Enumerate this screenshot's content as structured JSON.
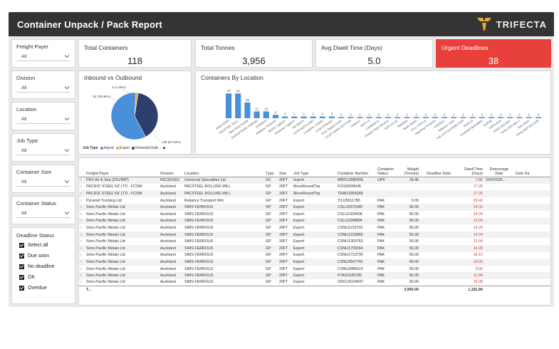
{
  "header": {
    "title": "Container Unpack / Pack Report",
    "logo_text": "TRIFECTA"
  },
  "slicers": [
    {
      "label": "Freight Payer",
      "value": "All"
    },
    {
      "label": "Division",
      "value": "All"
    },
    {
      "label": "Location",
      "value": "All"
    },
    {
      "label": "Job Type",
      "value": "All"
    },
    {
      "label": "Container Size",
      "value": "All"
    },
    {
      "label": "Container Status",
      "value": "All"
    }
  ],
  "deadline_status": {
    "title": "Deadline Status",
    "options": [
      "Select all",
      "Due soon",
      "No deadline",
      "OK",
      "Overdue"
    ]
  },
  "kpis": {
    "total_containers": {
      "label": "Total Containers",
      "value": "118"
    },
    "total_tonnes": {
      "label": "Total Tonnes",
      "value": "3,956"
    },
    "avg_dwell": {
      "label": "Avg Dwell Time (Days)",
      "value": "5.0"
    },
    "urgent": {
      "label": "Urgent Deadlines",
      "value": "38"
    }
  },
  "colors": {
    "import": "#4a90d9",
    "export": "#2e3e6e",
    "domestic": "#e8a838",
    "bar": "#4a90d9",
    "urgent": "#e8403b",
    "header": "#333334"
  },
  "chart_data": [
    {
      "type": "pie",
      "title": "Inbound vs Outbound",
      "legend_title": "Job Type",
      "legend": [
        "Import",
        "Export",
        "DomesticOutb..."
      ],
      "categories": [
        "Import",
        "Export",
        "DomesticOutbound"
      ],
      "values": [
        136,
        92,
        4
      ],
      "data_labels": [
        "136 (57.63%)",
        "92 (38.98%)",
        "4 (1.69%)"
      ]
    },
    {
      "type": "bar",
      "title": "Containers By Location",
      "categories": [
        "SIMS FERR",
        "PACSTEEL ROLL",
        "Blue Wing Honda",
        "Sanford Pacific Holdings",
        "CHEMCO",
        "Reliance Transport",
        "MOVE Logistics",
        "American Logistics",
        "NZ BRICK",
        "CCEP AUCKLAND",
        "Container Trustee",
        "Coral Company",
        "Enzo Supply Chain",
        "CCEP OASIS ROTTOM",
        "ChemCo",
        "UNITY 5",
        "ContainerCo",
        "Custom Pack Services",
        "REFLEX NZ",
        "Mainland",
        "Hawk Stores",
        "FULL CIRCLE",
        "Hyperstar Products",
        "KIWIRAIL",
        "Reliance Trans",
        "THE CAT DISTRIBUTION",
        "ROHLIG",
        "Universal Specialties",
        "SunPak",
        "VIRGLASS",
        "VIRGLASS BAY",
        "VIRGLASS BAY 2",
        "Vine Glass",
        "VIRGLASS NELSON"
      ],
      "values": [
        44,
        44,
        28,
        12,
        12,
        6,
        3,
        3,
        3,
        3,
        3,
        3,
        2,
        2,
        2,
        2,
        2,
        2,
        2,
        2,
        2,
        2,
        2,
        2,
        2,
        2,
        2,
        2,
        2,
        2,
        2,
        2,
        2,
        2
      ],
      "data_labels": [
        "44",
        "44",
        "28",
        "12",
        "12",
        "6",
        "3",
        "3",
        "3",
        "3",
        "3",
        "3",
        "2",
        "2",
        "2",
        "2",
        "2",
        "2",
        "2",
        "2",
        "2",
        "2",
        "2",
        "2",
        "2",
        "2",
        "2",
        "2",
        "2",
        "2",
        "2",
        "2",
        "2",
        "2"
      ]
    }
  ],
  "table": {
    "columns": [
      "Freight Payer",
      "Division",
      "Location",
      "Type",
      "Size",
      "Job Type",
      "Container Number",
      "Container Status",
      "Weight (Tonnes)",
      "Deadline Date",
      "Dwell Time (Days)",
      "Demurrage Date",
      "Dete Da"
    ],
    "rows": [
      [
        "DSV Air & Sea (DSVIMP)",
        "RECEIVED",
        "Universal Specialties Ltd",
        "HC",
        "40FT",
        "Import",
        "MRKU3986955",
        "UPK",
        "18.46",
        "",
        "7.66",
        "2/04/2026..."
      ],
      [
        "PACIFIC STEEL NZ LTD - FCSW",
        "Auckland",
        "PACSTEEL ROLLING MILL",
        "GP",
        "20FT",
        "MoveRoundTrip",
        "FCIU6599046",
        "",
        "",
        "",
        "17.26",
        ""
      ],
      [
        "PACIFIC STEEL NZ LTD - FCSW",
        "Auckland",
        "PACSTEEL ROLLING MILL",
        "GP",
        "20FT",
        "MoveRoundTrip",
        "TEMU1854268",
        "",
        "",
        "",
        "17.26",
        ""
      ],
      [
        "Pyramid Trucking Ltd",
        "Auckland",
        "Reliance Transport Wiri",
        "GP",
        "20FT",
        "Export",
        "TILU5011780",
        "PAK",
        "0.00",
        "",
        "20.42",
        ""
      ],
      [
        "Sims Pacific Metals Ltd",
        "Auckland",
        "SIMS FERROUS",
        "GP",
        "20FT",
        "Export",
        "CSLU1872340",
        "PAK",
        "56.00",
        "",
        "14.32",
        ""
      ],
      [
        "Sims Pacific Metals Ltd",
        "Auckland",
        "SIMS FERROUS",
        "GP",
        "20FT",
        "Export",
        "CSLU1929408",
        "PAK",
        "56.00",
        "",
        "14.24",
        ""
      ],
      [
        "Sims Pacific Metals Ltd",
        "Auckland",
        "SIMS FERROUS",
        "GP",
        "20FT",
        "Export",
        "CSLU2348894",
        "PAK",
        "56.00",
        "",
        "12.04",
        ""
      ],
      [
        "Sims Pacific Metals Ltd",
        "Auckland",
        "SIMS FERROUS",
        "GP",
        "20FT",
        "Export",
        "CSNU1215791",
        "PAK",
        "56.00",
        "",
        "14.24",
        ""
      ],
      [
        "Sims Pacific Metals Ltd",
        "Auckland",
        "SIMS FERROUS",
        "GP",
        "20FT",
        "Export",
        "CSNU1229856",
        "PAK",
        "56.00",
        "",
        "14.24",
        ""
      ],
      [
        "Sims Pacific Metals Ltd",
        "Auckland",
        "SIMS FERROUS",
        "GP",
        "20FT",
        "Export",
        "CSNU1303763",
        "PAK",
        "56.00",
        "",
        "12.04",
        ""
      ],
      [
        "Sims Pacific Metals Ltd",
        "Auckland",
        "SIMS FERROUS",
        "GP",
        "20FT",
        "Export",
        "CSNU1709264",
        "PAK",
        "56.00",
        "",
        "14.39",
        ""
      ],
      [
        "Sims Pacific Metals Ltd",
        "Auckland",
        "SIMS FERROUS",
        "GP",
        "20FT",
        "Export",
        "CSNU1723730",
        "PAK",
        "56.00",
        "",
        "16.12",
        ""
      ],
      [
        "Sims Pacific Metals Ltd",
        "Auckland",
        "SIMS FERROUS",
        "GP",
        "20FT",
        "Export",
        "CSNU2647742",
        "PAK",
        "56.00",
        "",
        "10.00",
        ""
      ],
      [
        "Sims Pacific Metals Ltd",
        "Auckland",
        "SIMS FERROUS",
        "GP",
        "20FT",
        "Export",
        "CSNU2886623",
        "PAK",
        "56.00",
        "",
        "0.02",
        ""
      ],
      [
        "Sims Pacific Metals Ltd",
        "Auckland",
        "SIMS FERROUS",
        "GP",
        "20FT",
        "Export",
        "FTAU1620795",
        "PAK",
        "56.00",
        "",
        "11.94",
        ""
      ],
      [
        "Sims Pacific Metals Ltd",
        "Auckland",
        "SIMS FERROUS",
        "GP",
        "20FT",
        "Export",
        "OOCU0104557",
        "PAK",
        "56.00",
        "",
        "16.08",
        ""
      ]
    ],
    "totals": {
      "label": "T...",
      "weight": "3,956.00",
      "dwell": "1,181.84"
    }
  }
}
